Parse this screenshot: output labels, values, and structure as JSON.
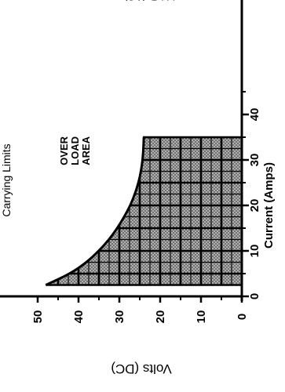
{
  "chart_data": {
    "type": "area",
    "title": "Carrying Limits",
    "subtitle": "V-I-R (AC)",
    "xlabel": "Current (Amps)",
    "ylabel": "Volts (DC)",
    "xlim": [
      0,
      50
    ],
    "ylim": [
      0,
      55
    ],
    "x_ticks": [
      "0",
      "10",
      "20",
      "30",
      "40"
    ],
    "y_ticks": [
      "0",
      "10",
      "20",
      "30",
      "40",
      "50"
    ],
    "grid": true,
    "series": [
      {
        "x": [
          2.5,
          5,
          7.5,
          10,
          12.5,
          15,
          17.5,
          20,
          22.5,
          25,
          27.5,
          30,
          32.5,
          35
        ],
        "y": [
          48,
          42,
          38,
          35,
          32.5,
          30.5,
          28.8,
          27.3,
          26.2,
          25.3,
          24.7,
          24.3,
          24.1,
          24
        ]
      }
    ],
    "annotations": [
      {
        "text": [
          "OVER",
          "LOAD",
          "AREA"
        ],
        "x": 32,
        "y": 41
      }
    ],
    "colors": {
      "fill": "#8c8c8c",
      "grid": "#000000",
      "stroke": "#000000"
    }
  }
}
